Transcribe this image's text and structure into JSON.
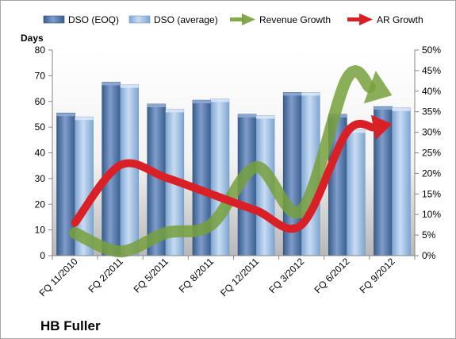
{
  "chart_data": {
    "type": "bar",
    "title": "HB Fuller",
    "ylabel": "Days",
    "categories": [
      "FQ 11/2010",
      "FQ 2/2011",
      "FQ 5/2011",
      "FQ 8/2011",
      "FQ 12/2011",
      "FQ 3/2012",
      "FQ 6/2012",
      "FQ 9/2012"
    ],
    "ylim": [
      0,
      80
    ],
    "y_ticks": [
      "0",
      "10",
      "20",
      "30",
      "40",
      "50",
      "60",
      "70",
      "80"
    ],
    "y2lim": [
      0,
      0.5
    ],
    "y2_ticks": [
      "0%",
      "5%",
      "10%",
      "15%",
      "20%",
      "25%",
      "30%",
      "35%",
      "40%",
      "45%",
      "50%"
    ],
    "legend_position": "top",
    "grid": false,
    "series": [
      {
        "name": "DSO (EOQ)",
        "kind": "bar",
        "axis": "left",
        "color": "#4f6fa3",
        "values": [
          55.5,
          67.5,
          59,
          60.5,
          55,
          63.5,
          55,
          58
        ]
      },
      {
        "name": "DSO (average)",
        "kind": "bar",
        "axis": "left",
        "color": "#9dbfe3",
        "values": [
          54,
          66.5,
          57,
          61,
          54.5,
          63.5,
          49,
          57.5
        ]
      },
      {
        "name": "Revenue Growth",
        "kind": "arrow-line",
        "axis": "right",
        "color": "#77a03c",
        "values": [
          0.055,
          0.01,
          0.055,
          0.075,
          0.215,
          0.11,
          0.43,
          0.39
        ]
      },
      {
        "name": "AR Growth",
        "kind": "arrow-line",
        "axis": "right",
        "color": "#d92027",
        "values": [
          0.08,
          0.22,
          0.19,
          0.15,
          0.11,
          0.075,
          0.3,
          0.32
        ]
      }
    ]
  }
}
